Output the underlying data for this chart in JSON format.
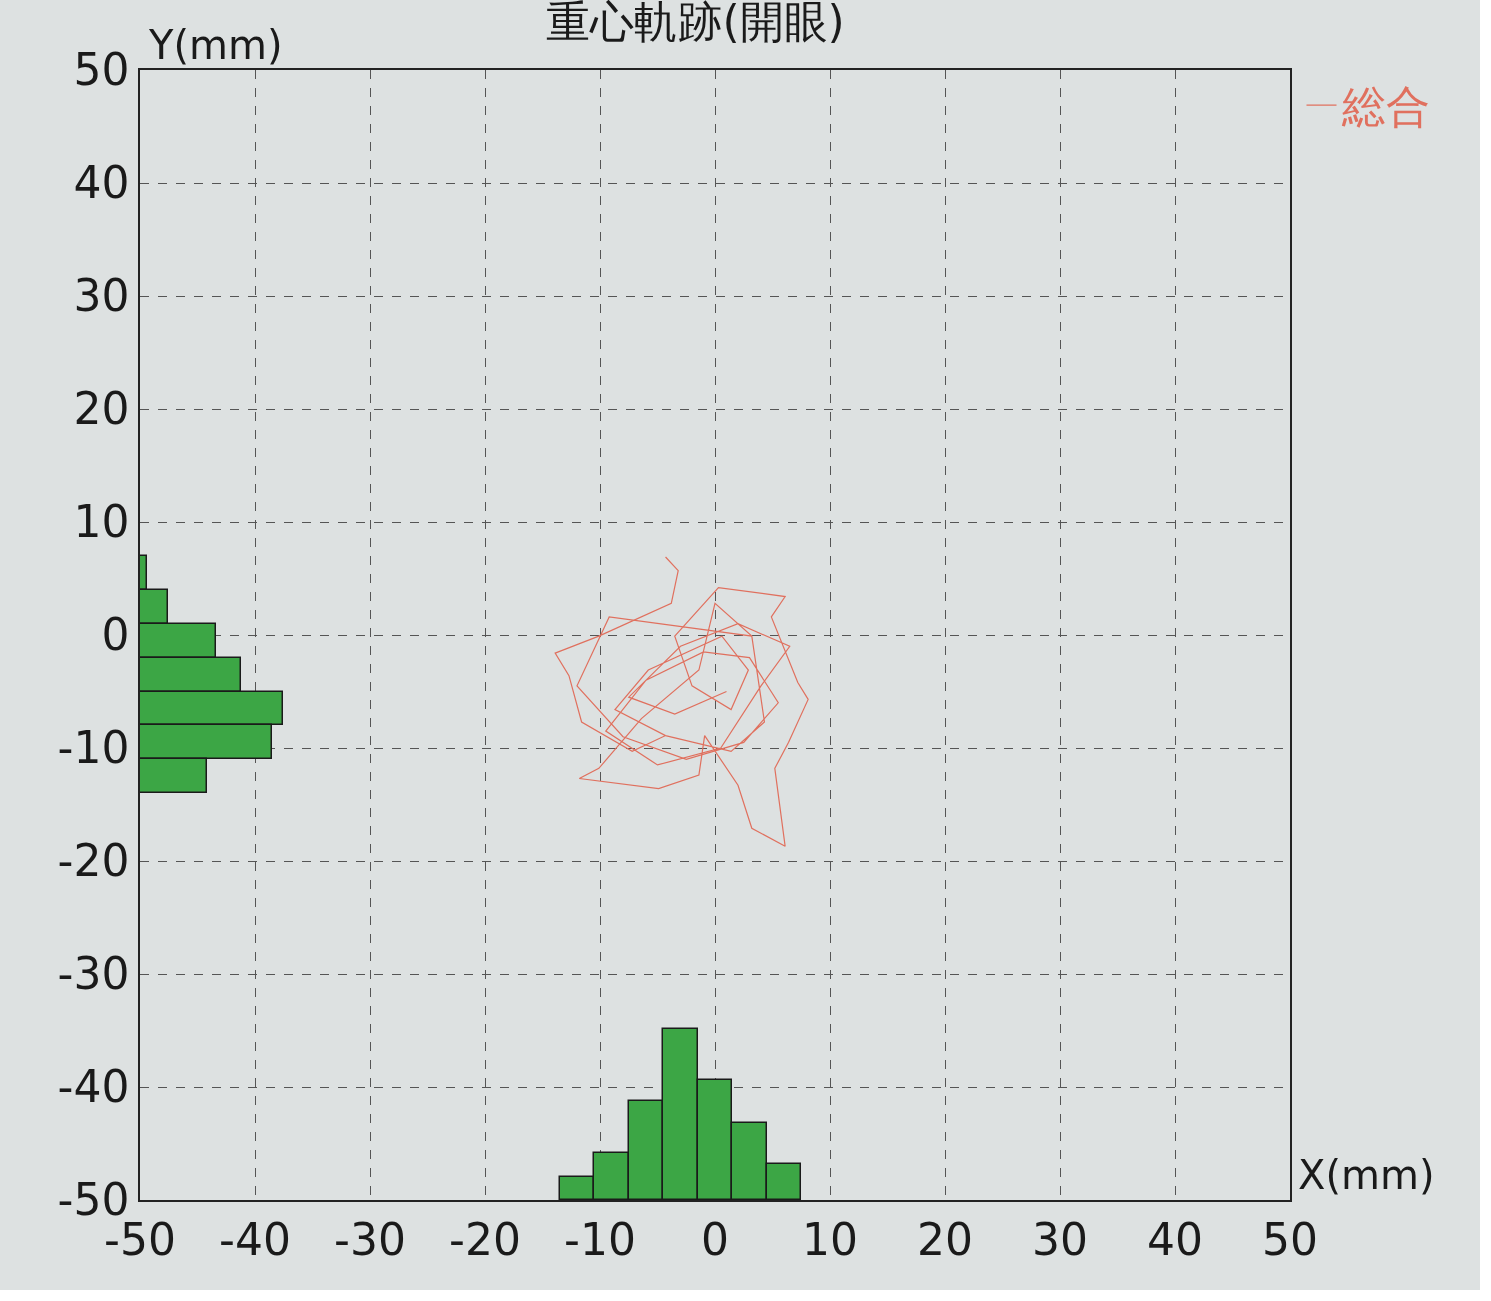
{
  "chart_data": [
    {
      "type": "line",
      "title": "重心軌跡(開眼)",
      "xlabel": "X(mm)",
      "ylabel": "Y(mm)",
      "xlim": [
        -50,
        50
      ],
      "ylim": [
        -50,
        50
      ],
      "xticks": [
        -50,
        -40,
        -30,
        -20,
        -10,
        0,
        10,
        20,
        30,
        40,
        50
      ],
      "yticks": [
        -50,
        -40,
        -30,
        -20,
        -10,
        0,
        10,
        20,
        30,
        40,
        50
      ],
      "grid": true,
      "line_style": "solid",
      "marker": "none",
      "legend": "top right",
      "series": [
        {
          "name": "総合",
          "color": "#e0705e",
          "x": [
            -4.3,
            -3.2,
            -3.8,
            -10.1,
            -13.9,
            -12.7,
            -11.6,
            -7.2,
            -4.3,
            1.4,
            4.3,
            3.2,
            0.0,
            -1.4,
            -6.4,
            -10.1,
            -11.8,
            -4.9,
            -1.4,
            -0.9,
            2.0,
            3.2,
            6.1,
            5.2,
            6.4,
            8.1,
            7.2,
            4.9,
            6.1,
            0.3,
            -3.5,
            -2.0,
            1.4,
            2.9,
            0.6,
            -5.8,
            -8.7,
            -4.3,
            1.4,
            4.3,
            3.2,
            -9.2,
            -12.0,
            -8.0,
            -2.5,
            2.5,
            5.5,
            3.0,
            -1.0,
            -6.0,
            -9.5,
            -5.0,
            0.5,
            4.0,
            6.5,
            2.0,
            -3.0,
            -7.5,
            -3.5,
            1.0
          ],
          "values": [
            6.9,
            5.7,
            2.8,
            -0.1,
            -1.6,
            -3.6,
            -7.7,
            -10.3,
            -8.9,
            -10.3,
            -7.7,
            -0.1,
            2.8,
            -3.1,
            -7.4,
            -11.8,
            -12.7,
            -13.6,
            -12.4,
            -8.9,
            -13.3,
            -17.1,
            -18.7,
            -11.8,
            -9.5,
            -5.7,
            -4.2,
            1.6,
            3.4,
            4.2,
            -0.1,
            -4.5,
            -6.6,
            -3.1,
            -0.1,
            -3.1,
            -6.6,
            -8.9,
            -10.3,
            -7.7,
            -0.1,
            1.6,
            -4.5,
            -9.0,
            -11.0,
            -9.5,
            -6.0,
            -2.0,
            -1.5,
            -4.0,
            -8.5,
            -11.5,
            -10.0,
            -4.5,
            -1.0,
            1.0,
            -1.0,
            -5.5,
            -7.0,
            -5.0
          ]
        },
        {
          "type": "bar",
          "color": "#3ca645",
          "x": [
            -12,
            -9,
            -6,
            -3,
            0,
            3,
            6
          ],
          "values": [
            2.0,
            4.2,
            8.8,
            15.1,
            10.6,
            6.8,
            3.2
          ],
          "base": [
            -50,
            -50,
            -50,
            -50,
            -50,
            -50,
            -50
          ]
        }
      ]
    },
    {
      "type": "bar",
      "orientation": "horizontal",
      "xlim": [
        -50,
        50
      ],
      "ylim": [
        -50,
        50
      ],
      "tick_labels": false,
      "xticks": [
        -50,
        -40,
        -30,
        -20,
        -10,
        0,
        10,
        20,
        30,
        40,
        50
      ],
      "yticks": [
        -50,
        -40,
        -30,
        -20,
        -10,
        0,
        10,
        20,
        30,
        40,
        50
      ],
      "series": [
        {
          "color": "#3ca645",
          "x": [
            5.5,
            2.5,
            -0.5,
            -3.5,
            -6.5,
            -9.5,
            -12.5
          ],
          "values": [
            0.6,
            2.4,
            6.6,
            8.8,
            12.4,
            11.5,
            5.8
          ],
          "base": [
            -50,
            -50,
            -50,
            -50,
            -50,
            -50,
            -50
          ]
        }
      ]
    }
  ]
}
